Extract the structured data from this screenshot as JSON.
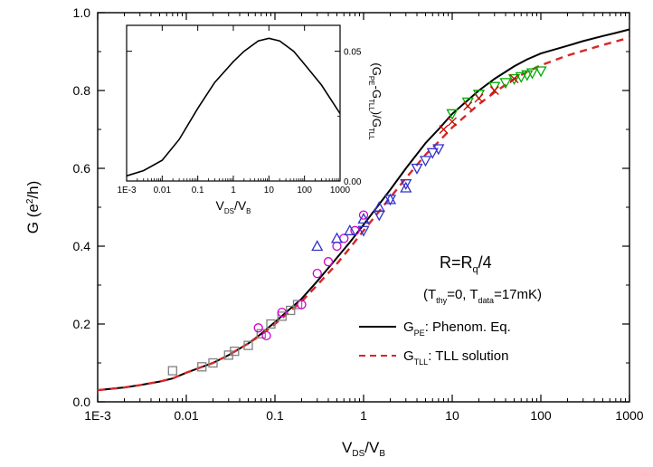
{
  "chart_data": [
    {
      "type": "line",
      "xscale": "log",
      "xlim": [
        0.001,
        1000
      ],
      "ylim": [
        0.0,
        1.0
      ],
      "xticks": [
        "1E-3",
        "0.01",
        "0.1",
        "1",
        "10",
        "100",
        "1000"
      ],
      "yticks": [
        "0.0",
        "0.2",
        "0.4",
        "0.6",
        "0.8",
        "1.0"
      ],
      "xlabel": {
        "main": "V",
        "sub1": "DS",
        "mid": "/V",
        "sub2": "B"
      },
      "ylabel": {
        "pre": "G (e",
        "sup": "2",
        "post": "/h)"
      },
      "annotation": {
        "title_main": "R=R",
        "title_sub": "q",
        "title_post": "/4",
        "cond_open": "(T",
        "cond_sub1": "thy",
        "cond_mid": "=0, T",
        "cond_sub2": "data",
        "cond_close": "=17mK)"
      },
      "legend": [
        {
          "main": "G",
          "sub": "PE",
          "text": ": Phenom. Eq.",
          "color": "#000000",
          "dash": "none"
        },
        {
          "main": "G",
          "sub": "TLL",
          "text": ": TLL solution",
          "color": "#d62728",
          "dash": "7,5"
        }
      ],
      "series": [
        {
          "color": "#000000",
          "style": "solid",
          "x": [
            0.001,
            0.002,
            0.003,
            0.005,
            0.007,
            0.01,
            0.02,
            0.03,
            0.05,
            0.07,
            0.1,
            0.2,
            0.3,
            0.5,
            0.7,
            1,
            2,
            3,
            5,
            7,
            10,
            20,
            30,
            50,
            70,
            100,
            200,
            300,
            500,
            700,
            1000
          ],
          "y": [
            0.03,
            0.037,
            0.043,
            0.052,
            0.06,
            0.075,
            0.1,
            0.12,
            0.15,
            0.175,
            0.205,
            0.265,
            0.31,
            0.37,
            0.41,
            0.455,
            0.545,
            0.6,
            0.665,
            0.7,
            0.74,
            0.8,
            0.83,
            0.862,
            0.88,
            0.895,
            0.915,
            0.927,
            0.94,
            0.948,
            0.957
          ]
        },
        {
          "color": "#d62728",
          "style": "dashed",
          "x": [
            0.001,
            0.002,
            0.003,
            0.005,
            0.007,
            0.01,
            0.02,
            0.03,
            0.05,
            0.07,
            0.1,
            0.2,
            0.3,
            0.5,
            0.7,
            1,
            2,
            3,
            5,
            7,
            10,
            20,
            30,
            50,
            70,
            100,
            200,
            300,
            500,
            700,
            1000
          ],
          "y": [
            0.03,
            0.037,
            0.043,
            0.052,
            0.06,
            0.075,
            0.1,
            0.12,
            0.15,
            0.172,
            0.2,
            0.258,
            0.3,
            0.355,
            0.395,
            0.44,
            0.525,
            0.575,
            0.635,
            0.668,
            0.705,
            0.765,
            0.795,
            0.83,
            0.848,
            0.865,
            0.89,
            0.902,
            0.917,
            0.926,
            0.936
          ]
        }
      ],
      "markers": [
        {
          "shape": "square",
          "color": "#808080",
          "x": [
            0.007,
            0.015,
            0.02,
            0.03,
            0.035,
            0.05,
            0.07,
            0.09,
            0.12,
            0.15,
            0.18
          ],
          "y": [
            0.08,
            0.09,
            0.1,
            0.12,
            0.13,
            0.145,
            0.175,
            0.2,
            0.22,
            0.235,
            0.25
          ]
        },
        {
          "shape": "circle",
          "color": "#cc00cc",
          "x": [
            0.065,
            0.08,
            0.12,
            0.2,
            0.3,
            0.4,
            0.5,
            0.6,
            0.8,
            1.0
          ],
          "y": [
            0.19,
            0.17,
            0.23,
            0.25,
            0.33,
            0.36,
            0.4,
            0.42,
            0.44,
            0.48
          ]
        },
        {
          "shape": "triangle-up",
          "color": "#3333cc",
          "x": [
            0.3,
            0.5,
            0.7,
            1.0,
            1.5,
            2,
            3
          ],
          "y": [
            0.4,
            0.42,
            0.44,
            0.47,
            0.5,
            0.52,
            0.55
          ]
        },
        {
          "shape": "triangle-down",
          "color": "#3333cc",
          "x": [
            1,
            1.5,
            2,
            3,
            4,
            5,
            6,
            7
          ],
          "y": [
            0.44,
            0.48,
            0.52,
            0.56,
            0.6,
            0.62,
            0.64,
            0.65
          ]
        },
        {
          "shape": "triangle-down",
          "color": "#00aa00",
          "x": [
            10,
            15,
            20,
            30,
            40,
            50,
            60,
            70,
            80,
            100
          ],
          "y": [
            0.74,
            0.77,
            0.79,
            0.81,
            0.82,
            0.83,
            0.835,
            0.84,
            0.845,
            0.85
          ]
        },
        {
          "shape": "cross",
          "color": "#cc0000",
          "x": [
            8,
            10,
            15,
            20,
            30,
            50
          ],
          "y": [
            0.7,
            0.72,
            0.76,
            0.78,
            0.8,
            0.83
          ]
        }
      ]
    },
    {
      "type": "line",
      "xscale": "log",
      "xlim": [
        0.001,
        1000
      ],
      "ylim": [
        0.0,
        0.06
      ],
      "xticks": [
        "1E-3",
        "0.01",
        "0.1",
        "1",
        "10",
        "100",
        "1000"
      ],
      "yticks": [
        "0.00",
        "0.05"
      ],
      "xlabel": {
        "main": "V",
        "sub1": "DS",
        "mid": "/V",
        "sub2": "B"
      },
      "ylabel": {
        "open": "(G",
        "sub1": "PE",
        "mid": "-G",
        "sub2": "TLL",
        "mid2": ")/G",
        "sub3": "TLL"
      },
      "series": [
        {
          "color": "#000000",
          "style": "solid",
          "x": [
            0.001,
            0.003,
            0.01,
            0.03,
            0.1,
            0.3,
            1,
            2,
            5,
            10,
            20,
            50,
            100,
            300,
            1000
          ],
          "y": [
            0.002,
            0.004,
            0.008,
            0.016,
            0.028,
            0.038,
            0.046,
            0.05,
            0.054,
            0.055,
            0.054,
            0.05,
            0.045,
            0.037,
            0.026
          ]
        }
      ]
    }
  ]
}
